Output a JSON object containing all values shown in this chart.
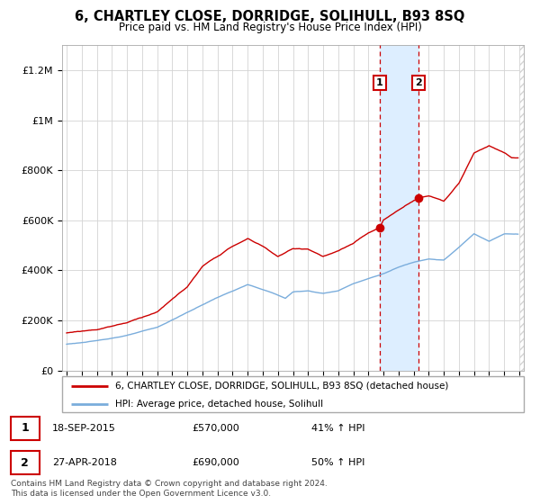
{
  "title": "6, CHARTLEY CLOSE, DORRIDGE, SOLIHULL, B93 8SQ",
  "subtitle": "Price paid vs. HM Land Registry's House Price Index (HPI)",
  "legend_line1": "6, CHARTLEY CLOSE, DORRIDGE, SOLIHULL, B93 8SQ (detached house)",
  "legend_line2": "HPI: Average price, detached house, Solihull",
  "sale1_date": "18-SEP-2015",
  "sale1_price": "£570,000",
  "sale1_hpi": "41% ↑ HPI",
  "sale2_date": "27-APR-2018",
  "sale2_price": "£690,000",
  "sale2_hpi": "50% ↑ HPI",
  "footnote": "Contains HM Land Registry data © Crown copyright and database right 2024.\nThis data is licensed under the Open Government Licence v3.0.",
  "red_color": "#cc0000",
  "blue_color": "#7aaddc",
  "shaded_color": "#ddeeff",
  "ylim_max": 1300000,
  "yticks": [
    0,
    200000,
    400000,
    600000,
    800000,
    1000000,
    1200000
  ],
  "ytick_labels": [
    "£0",
    "£200K",
    "£400K",
    "£600K",
    "£800K",
    "£1M",
    "£1.2M"
  ],
  "sale1_year": 2015.75,
  "sale2_year": 2018.32,
  "sale1_price_val": 570000,
  "sale2_price_val": 690000,
  "xmin": 1994.7,
  "xmax": 2025.3
}
